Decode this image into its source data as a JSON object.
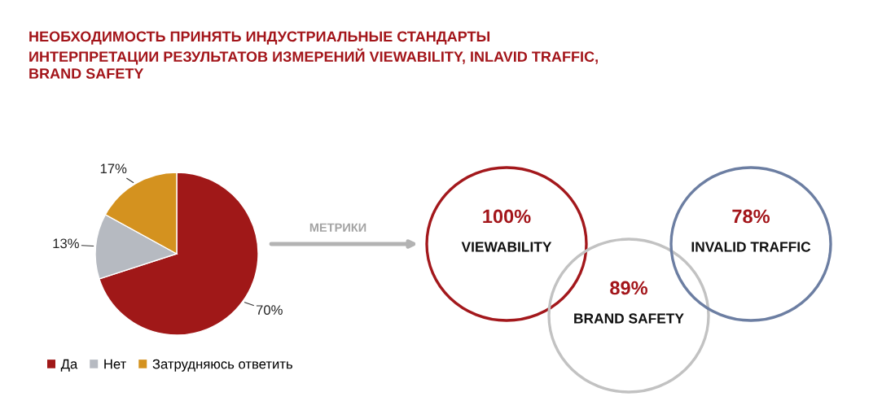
{
  "chart_data": [
    {
      "type": "pie",
      "title": "НЕОБХОДИМОСТЬ ПРИНЯТЬ ИНДУСТРИАЛЬНЫЕ СТАНДАРТЫ\nИНТЕРПРЕТАЦИИ РЕЗУЛЬТАТОВ ИЗМЕРЕНИЙ VIEWABILITY, INLAVID TRAFFIC,\nBRAND SAFETY",
      "categories": [
        "Да",
        "Нет",
        "Затрудняюсь ответить"
      ],
      "values": [
        70,
        13,
        17
      ],
      "value_labels": [
        "70%",
        "13%",
        "17%"
      ],
      "colors": [
        "#a01818",
        "#b6bac1",
        "#d4921f"
      ],
      "legend": "bottom"
    },
    {
      "type": "other",
      "categories": [
        "VIEWABILITY",
        "BRAND SAFETY",
        "INVALID TRAFFIC"
      ],
      "values": [
        100,
        89,
        78
      ],
      "value_labels": [
        "100%",
        "89%",
        "78%"
      ],
      "colors": [
        "#a3181c",
        "#c2c2c2",
        "#6c7ea2"
      ],
      "annotations": [
        "МЕТРИКИ"
      ]
    }
  ]
}
